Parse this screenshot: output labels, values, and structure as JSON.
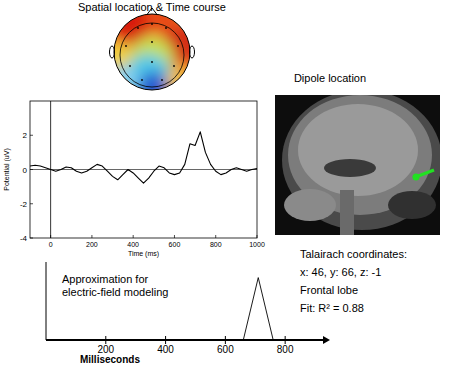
{
  "header": {
    "title": "Spatial location & Time course"
  },
  "chart_data": [
    {
      "type": "line",
      "x": [
        -100,
        -75,
        -50,
        -25,
        0,
        25,
        50,
        75,
        100,
        125,
        150,
        175,
        200,
        225,
        250,
        275,
        300,
        325,
        350,
        375,
        400,
        425,
        450,
        475,
        500,
        525,
        550,
        575,
        600,
        625,
        650,
        675,
        700,
        725,
        750,
        775,
        800,
        825,
        850,
        875,
        900,
        925,
        950,
        975,
        1000
      ],
      "values": [
        0.2,
        0.25,
        0.2,
        0.1,
        0.0,
        -0.1,
        0.0,
        0.15,
        0.1,
        -0.1,
        -0.2,
        -0.1,
        0.1,
        0.3,
        0.2,
        -0.1,
        -0.4,
        -0.6,
        -0.3,
        0.0,
        -0.2,
        -0.5,
        -0.8,
        -0.5,
        -0.1,
        0.2,
        0.1,
        -0.2,
        -0.3,
        -0.2,
        0.3,
        1.5,
        1.4,
        2.2,
        1.0,
        0.3,
        -0.1,
        -0.3,
        -0.2,
        0.0,
        0.1,
        0.0,
        -0.1,
        0.0,
        0.05
      ],
      "color": "#000000",
      "xlim": [
        -100,
        1000
      ],
      "ylim": [
        -4,
        4
      ],
      "xticks": [
        0,
        200,
        400,
        600,
        800,
        1000
      ],
      "yticks": [
        -4,
        -2,
        0,
        2
      ],
      "x_label": "Time (ms)",
      "y_label": "Potential (uV)"
    },
    {
      "type": "line",
      "annotation": [
        "Approximation for",
        "electric-field modeling"
      ],
      "x": [
        660,
        710,
        760
      ],
      "values": [
        0,
        1,
        0
      ],
      "color": "#000000",
      "xlim": [
        0,
        950
      ],
      "ylim": [
        0,
        1.25
      ],
      "xticks": [
        200,
        400,
        600,
        800
      ],
      "x_label": "Milliseconds",
      "tick_labels": "x"
    }
  ],
  "dipole": {
    "title": "Dipole location",
    "lines": [
      "Talairach coordinates:",
      "x: 46, y: 66, z: -1",
      "Frontal lobe",
      "Fit: R² = 0.88"
    ]
  }
}
